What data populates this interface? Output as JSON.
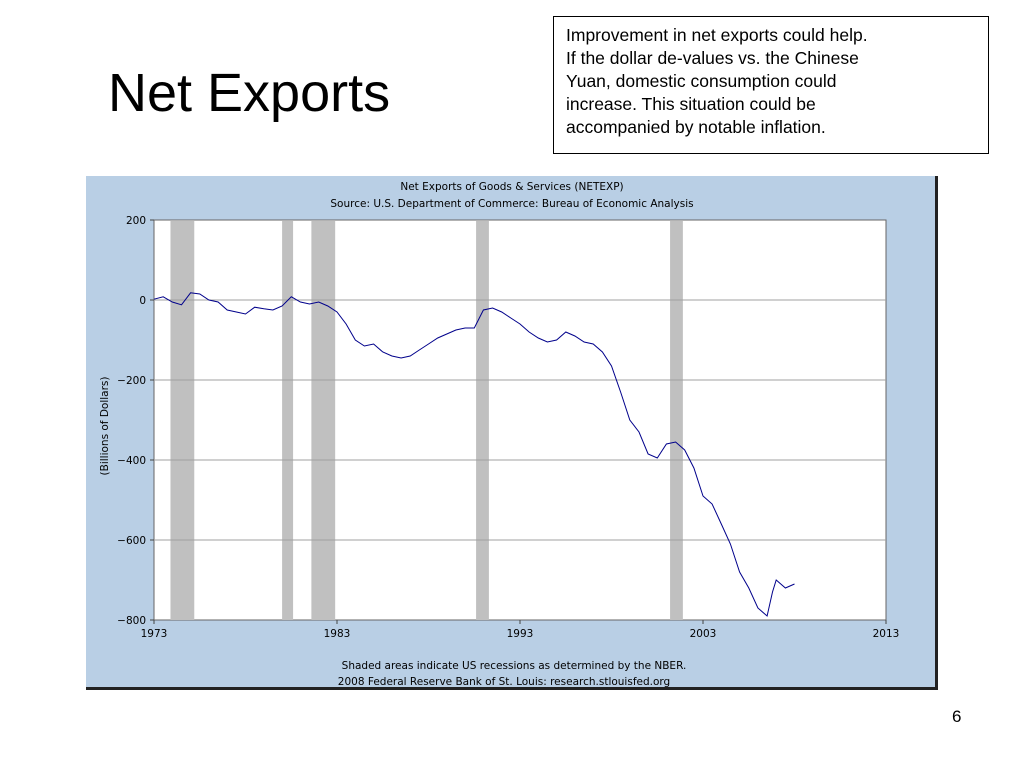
{
  "slide": {
    "title": "Net Exports",
    "callout_text": "Improvement in net exports could help.\nIf the dollar de-values vs. the Chinese\nYuan, domestic consumption could\nincrease.  This situation could be\naccompanied by notable inflation.",
    "page_number": "6"
  },
  "colors": {
    "panel_background": "#b9cfe5",
    "plot_background": "#ffffff",
    "recession_shading": "#c0c0c0",
    "series_line": "#00008b",
    "grid": "#a0a0a0"
  },
  "chart_data": {
    "type": "line",
    "title": "Net Exports of Goods & Services (NETEXP)",
    "subtitle": "Source: U.S. Department of Commerce: Bureau of Economic Analysis",
    "xlabel": "",
    "ylabel": "(Billions of Dollars)",
    "footnote_1": "Shaded areas indicate US recessions as determined by the NBER.",
    "footnote_2": "2008 Federal Reserve Bank of St. Louis: research.stlouisfed.org",
    "xlim": [
      1973,
      2013
    ],
    "ylim": [
      -800,
      200
    ],
    "x_ticks": [
      1973,
      1983,
      1993,
      2003,
      2013
    ],
    "x_tick_labels": [
      "1973",
      "1983",
      "1993",
      "2003",
      "2013"
    ],
    "y_ticks": [
      200,
      0,
      -200,
      -400,
      -600,
      -800
    ],
    "y_tick_labels": [
      "200",
      "0",
      "−200",
      "−400",
      "−600",
      "−800"
    ],
    "horizontal_grid": true,
    "recessions": [
      [
        1973.9,
        1975.2
      ],
      [
        1980.0,
        1980.6
      ],
      [
        1981.6,
        1982.9
      ],
      [
        1990.6,
        1991.3
      ],
      [
        2001.2,
        2001.9
      ]
    ],
    "series": [
      {
        "x": [
          1973.0,
          1973.5,
          1974.0,
          1974.5,
          1975.0,
          1975.5,
          1976.0,
          1976.5,
          1977.0,
          1977.5,
          1978.0,
          1978.5,
          1979.0,
          1979.5,
          1980.0,
          1980.5,
          1981.0,
          1981.5,
          1982.0,
          1982.5,
          1983.0,
          1983.5,
          1984.0,
          1984.5,
          1985.0,
          1985.5,
          1986.0,
          1986.5,
          1987.0,
          1987.5,
          1988.0,
          1988.5,
          1989.0,
          1989.5,
          1990.0,
          1990.5,
          1991.0,
          1991.5,
          1992.0,
          1992.5,
          1993.0,
          1993.5,
          1994.0,
          1994.5,
          1995.0,
          1995.5,
          1996.0,
          1996.5,
          1997.0,
          1997.5,
          1998.0,
          1998.5,
          1999.0,
          1999.5,
          2000.0,
          2000.5,
          2001.0,
          2001.5,
          2002.0,
          2002.5,
          2003.0,
          2003.5,
          2004.0,
          2004.5,
          2005.0,
          2005.5,
          2006.0,
          2006.5,
          2006.8,
          2007.0,
          2007.5,
          2008.0
        ],
        "y": [
          2,
          8,
          -5,
          -12,
          18,
          15,
          0,
          -5,
          -25,
          -30,
          -35,
          -18,
          -22,
          -25,
          -15,
          8,
          -5,
          -10,
          -5,
          -15,
          -30,
          -60,
          -100,
          -115,
          -110,
          -130,
          -140,
          -145,
          -140,
          -125,
          -110,
          -95,
          -85,
          -75,
          -70,
          -70,
          -25,
          -20,
          -30,
          -45,
          -60,
          -80,
          -95,
          -105,
          -100,
          -80,
          -90,
          -105,
          -110,
          -130,
          -165,
          -230,
          -300,
          -330,
          -385,
          -395,
          -360,
          -355,
          -375,
          -420,
          -490,
          -510,
          -560,
          -610,
          -680,
          -720,
          -770,
          -790,
          -730,
          -700,
          -720,
          -710
        ]
      }
    ]
  }
}
